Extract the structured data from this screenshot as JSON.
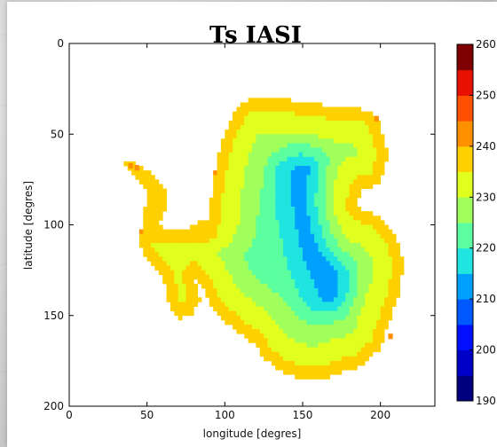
{
  "chart_data": {
    "type": "heatmap",
    "title": "Ts IASI",
    "xlabel": "longitude [degres]",
    "ylabel": "latitude [degres]",
    "xlim": [
      0,
      235
    ],
    "ylim": [
      200,
      0
    ],
    "xticks": [
      0,
      50,
      100,
      150,
      200
    ],
    "yticks": [
      0,
      50,
      100,
      150,
      200
    ],
    "colorbar": {
      "min": 190,
      "max": 260,
      "ticks": [
        190,
        200,
        210,
        220,
        230,
        240,
        250,
        260
      ],
      "levels": [
        190,
        195,
        200,
        205,
        210,
        215,
        220,
        225,
        230,
        235,
        240,
        245,
        250,
        255,
        260
      ],
      "colors": [
        "#00007f",
        "#0000c8",
        "#0010ff",
        "#0058ff",
        "#00a0ff",
        "#1fe4e0",
        "#5bffa0",
        "#a0ff5b",
        "#e0ff1f",
        "#ffd000",
        "#ff9000",
        "#ff5000",
        "#e81000",
        "#7f0000"
      ]
    },
    "grid": false,
    "description_values": "Surface temperature field over Antarctica: coastal margins ~235-240, interior plateau minimum ~205"
  }
}
